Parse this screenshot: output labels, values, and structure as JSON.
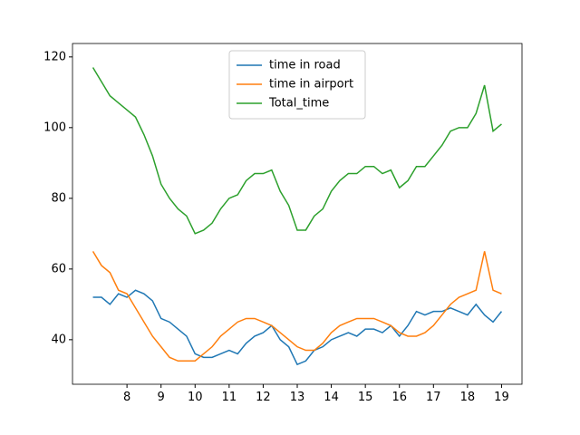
{
  "chart_data": {
    "type": "line",
    "x": [
      7,
      7.25,
      7.5,
      7.75,
      8,
      8.25,
      8.5,
      8.75,
      9,
      9.25,
      9.5,
      9.75,
      10,
      10.25,
      10.5,
      10.75,
      11,
      11.25,
      11.5,
      11.75,
      12,
      12.25,
      12.5,
      12.75,
      13,
      13.25,
      13.5,
      13.75,
      14,
      14.25,
      14.5,
      14.75,
      15,
      15.25,
      15.5,
      15.75,
      16,
      16.25,
      16.5,
      16.75,
      17,
      17.25,
      17.5,
      17.75,
      18,
      18.25,
      18.5,
      18.75,
      19
    ],
    "series": [
      {
        "name": "time in road",
        "color": "#1f77b4",
        "values": [
          52,
          52,
          50,
          53,
          52,
          54,
          53,
          51,
          46,
          45,
          43,
          41,
          36,
          35,
          35,
          36,
          37,
          36,
          39,
          41,
          42,
          44,
          40,
          38,
          33,
          34,
          37,
          38,
          40,
          41,
          42,
          41,
          43,
          43,
          42,
          44,
          41,
          44,
          48,
          47,
          48,
          48,
          49,
          48,
          47,
          50,
          47,
          45,
          48
        ]
      },
      {
        "name": "time in airport",
        "color": "#ff7f0e",
        "values": [
          65,
          61,
          59,
          54,
          53,
          49,
          45,
          41,
          38,
          35,
          34,
          34,
          34,
          36,
          38,
          41,
          43,
          45,
          46,
          46,
          45,
          44,
          42,
          40,
          38,
          37,
          37,
          39,
          42,
          44,
          45,
          46,
          46,
          46,
          45,
          44,
          42,
          41,
          41,
          42,
          44,
          47,
          50,
          52,
          53,
          54,
          65,
          54,
          53
        ]
      },
      {
        "name": "Total_time",
        "color": "#2ca02c",
        "values": [
          117,
          113,
          109,
          107,
          105,
          103,
          98,
          92,
          84,
          80,
          77,
          75,
          70,
          71,
          73,
          77,
          80,
          81,
          85,
          87,
          87,
          88,
          82,
          78,
          71,
          71,
          75,
          77,
          82,
          85,
          87,
          87,
          89,
          89,
          87,
          88,
          83,
          85,
          89,
          89,
          92,
          95,
          99,
          100,
          100,
          104,
          112,
          99,
          101
        ]
      }
    ],
    "xlim": [
      6.4,
      19.6
    ],
    "xticks": [
      8,
      9,
      10,
      11,
      12,
      13,
      14,
      15,
      16,
      17,
      18,
      19
    ],
    "ylim": [
      27.4,
      123.8
    ],
    "yticks": [
      40,
      60,
      80,
      100,
      120
    ],
    "legend": "upper center"
  }
}
